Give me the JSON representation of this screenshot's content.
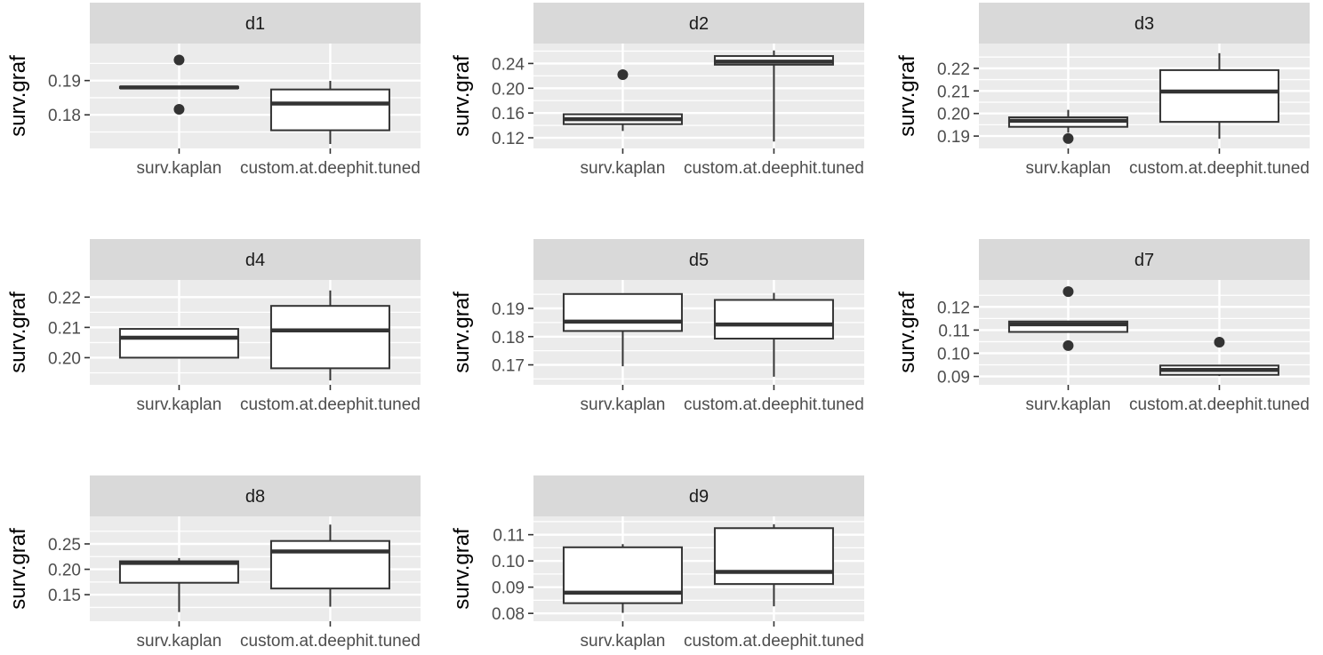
{
  "chart_data": {
    "type": "boxplot",
    "ylabel": "surv.graf",
    "categories": [
      "surv.kaplan",
      "custom.at.deephit.tuned"
    ],
    "panels": [
      {
        "strip": "d1",
        "yticks": [
          "0.18",
          "0.19"
        ],
        "ylim": [
          0.1715,
          0.1995
        ],
        "boxes": [
          {
            "category": "surv.kaplan",
            "whisker_low": 0.1878,
            "q1": 0.1878,
            "median": 0.188,
            "q3": 0.1882,
            "whisker_high": 0.1882,
            "outliers": [
              0.1816,
              0.196
            ]
          },
          {
            "category": "custom.at.deephit.tuned",
            "whisker_low": 0.1715,
            "q1": 0.1755,
            "median": 0.1833,
            "q3": 0.1874,
            "whisker_high": 0.1899,
            "outliers": []
          }
        ]
      },
      {
        "strip": "d2",
        "yticks": [
          "0.12",
          "0.16",
          "0.20",
          "0.24"
        ],
        "ylim": [
          0.11,
          0.265
        ],
        "boxes": [
          {
            "category": "surv.kaplan",
            "whisker_low": 0.131,
            "q1": 0.142,
            "median": 0.15,
            "q3": 0.158,
            "whisker_high": 0.158,
            "outliers": [
              0.222
            ]
          },
          {
            "category": "custom.at.deephit.tuned",
            "whisker_low": 0.114,
            "q1": 0.238,
            "median": 0.243,
            "q3": 0.252,
            "whisker_high": 0.261,
            "outliers": []
          }
        ]
      },
      {
        "strip": "d3",
        "yticks": [
          "0.19",
          "0.20",
          "0.21",
          "0.22"
        ],
        "ylim": [
          0.1865,
          0.229
        ],
        "boxes": [
          {
            "category": "surv.kaplan",
            "whisker_low": 0.1915,
            "q1": 0.1941,
            "median": 0.1968,
            "q3": 0.1983,
            "whisker_high": 0.2016,
            "outliers": [
              0.1889
            ]
          },
          {
            "category": "custom.at.deephit.tuned",
            "whisker_low": 0.1888,
            "q1": 0.1963,
            "median": 0.2097,
            "q3": 0.2192,
            "whisker_high": 0.2267,
            "outliers": []
          }
        ]
      },
      {
        "strip": "d4",
        "yticks": [
          "0.20",
          "0.21",
          "0.22"
        ],
        "ylim": [
          0.1925,
          0.2242
        ],
        "boxes": [
          {
            "category": "surv.kaplan",
            "whisker_low": 0.1998,
            "q1": 0.2,
            "median": 0.2066,
            "q3": 0.2095,
            "whisker_high": 0.2095,
            "outliers": []
          },
          {
            "category": "custom.at.deephit.tuned",
            "whisker_low": 0.1925,
            "q1": 0.1965,
            "median": 0.209,
            "q3": 0.2171,
            "whisker_high": 0.2222,
            "outliers": []
          }
        ]
      },
      {
        "strip": "d5",
        "yticks": [
          "0.17",
          "0.18",
          "0.19"
        ],
        "ylim": [
          0.1645,
          0.1985
        ],
        "boxes": [
          {
            "category": "surv.kaplan",
            "whisker_low": 0.1695,
            "q1": 0.182,
            "median": 0.1853,
            "q3": 0.1951,
            "whisker_high": 0.1951,
            "outliers": []
          },
          {
            "category": "custom.at.deephit.tuned",
            "whisker_low": 0.1658,
            "q1": 0.1793,
            "median": 0.1843,
            "q3": 0.193,
            "whisker_high": 0.1955,
            "outliers": []
          }
        ]
      },
      {
        "strip": "d7",
        "yticks": [
          "0.09",
          "0.10",
          "0.11",
          "0.12"
        ],
        "ylim": [
          0.0883,
          0.1297
        ],
        "boxes": [
          {
            "category": "surv.kaplan",
            "whisker_low": 0.1092,
            "q1": 0.1092,
            "median": 0.1125,
            "q3": 0.1137,
            "whisker_high": 0.1137,
            "outliers": [
              0.1033,
              0.1266
            ]
          },
          {
            "category": "custom.at.deephit.tuned",
            "whisker_low": 0.0902,
            "q1": 0.0907,
            "median": 0.0928,
            "q3": 0.0947,
            "whisker_high": 0.0947,
            "outliers": [
              0.1048
            ]
          }
        ]
      },
      {
        "strip": "d8",
        "yticks": [
          "0.15",
          "0.20",
          "0.25"
        ],
        "ylim": [
          0.1065,
          0.2955
        ],
        "boxes": [
          {
            "category": "surv.kaplan",
            "whisker_low": 0.1158,
            "q1": 0.1735,
            "median": 0.2125,
            "q3": 0.2158,
            "whisker_high": 0.2222,
            "outliers": []
          },
          {
            "category": "custom.at.deephit.tuned",
            "whisker_low": 0.1264,
            "q1": 0.1622,
            "median": 0.2352,
            "q3": 0.2558,
            "whisker_high": 0.288,
            "outliers": []
          }
        ]
      },
      {
        "strip": "d9",
        "yticks": [
          "0.08",
          "0.09",
          "0.10",
          "0.11"
        ],
        "ylim": [
          0.0787,
          0.1153
        ],
        "boxes": [
          {
            "category": "surv.kaplan",
            "whisker_low": 0.0802,
            "q1": 0.0839,
            "median": 0.0879,
            "q3": 0.1052,
            "whisker_high": 0.1064,
            "outliers": []
          },
          {
            "category": "custom.at.deephit.tuned",
            "whisker_low": 0.0827,
            "q1": 0.0912,
            "median": 0.0958,
            "q3": 0.1125,
            "whisker_high": 0.114,
            "outliers": []
          }
        ]
      }
    ]
  }
}
